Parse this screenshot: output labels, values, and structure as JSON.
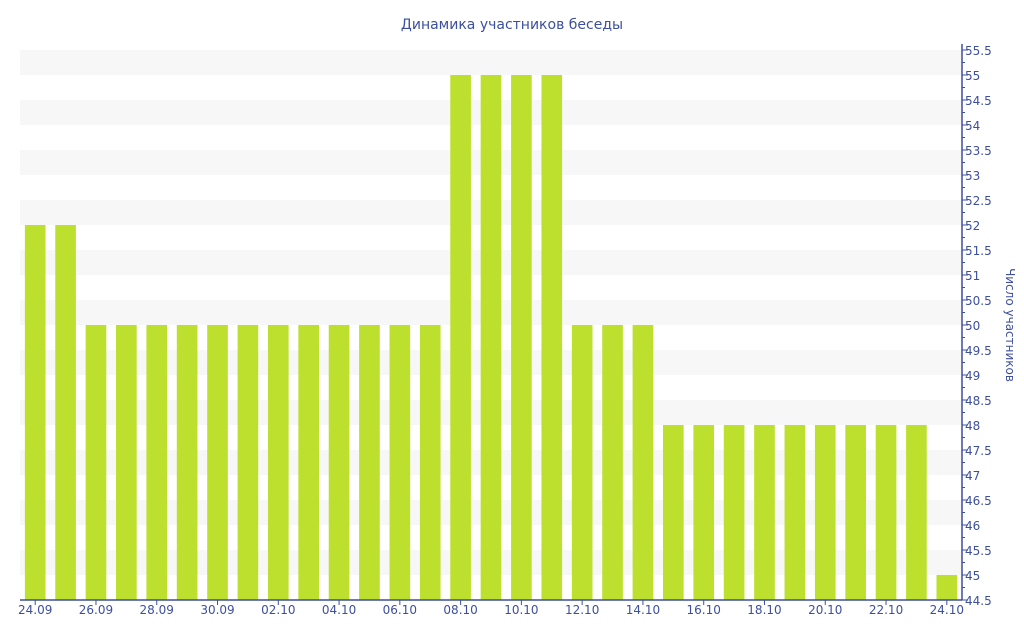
{
  "chart_data": {
    "type": "bar",
    "title": "Динамика участников беседы",
    "xlabel": "",
    "ylabel": "Число участников",
    "y_axis_position": "right",
    "ylim": [
      44.5,
      55.5
    ],
    "ytick_step": 0.5,
    "grid": "alternating horizontal bands",
    "categories": [
      "24.09",
      "25.09",
      "26.09",
      "27.09",
      "28.09",
      "29.09",
      "30.09",
      "01.10",
      "02.10",
      "03.10",
      "04.10",
      "05.10",
      "06.10",
      "07.10",
      "08.10",
      "09.10",
      "10.10",
      "11.10",
      "12.10",
      "13.10",
      "14.10",
      "15.10",
      "16.10",
      "17.10",
      "18.10",
      "19.10",
      "20.10",
      "21.10",
      "22.10",
      "23.10",
      "24.10"
    ],
    "xtick_labels": [
      "24.09",
      "26.09",
      "28.09",
      "30.09",
      "02.10",
      "04.10",
      "06.10",
      "08.10",
      "10.10",
      "12.10",
      "14.10",
      "16.10",
      "18.10",
      "20.10",
      "22.10",
      "24.10"
    ],
    "values": [
      52,
      52,
      50,
      50,
      50,
      50,
      50,
      50,
      50,
      50,
      50,
      50,
      50,
      50,
      55,
      55,
      55,
      55,
      50,
      50,
      50,
      48,
      48,
      48,
      48,
      48,
      48,
      48,
      48,
      48,
      45
    ],
    "colors": {
      "bar": "#bde02e",
      "axis": "#3d4f9f",
      "band": "#f7f7f7"
    }
  }
}
